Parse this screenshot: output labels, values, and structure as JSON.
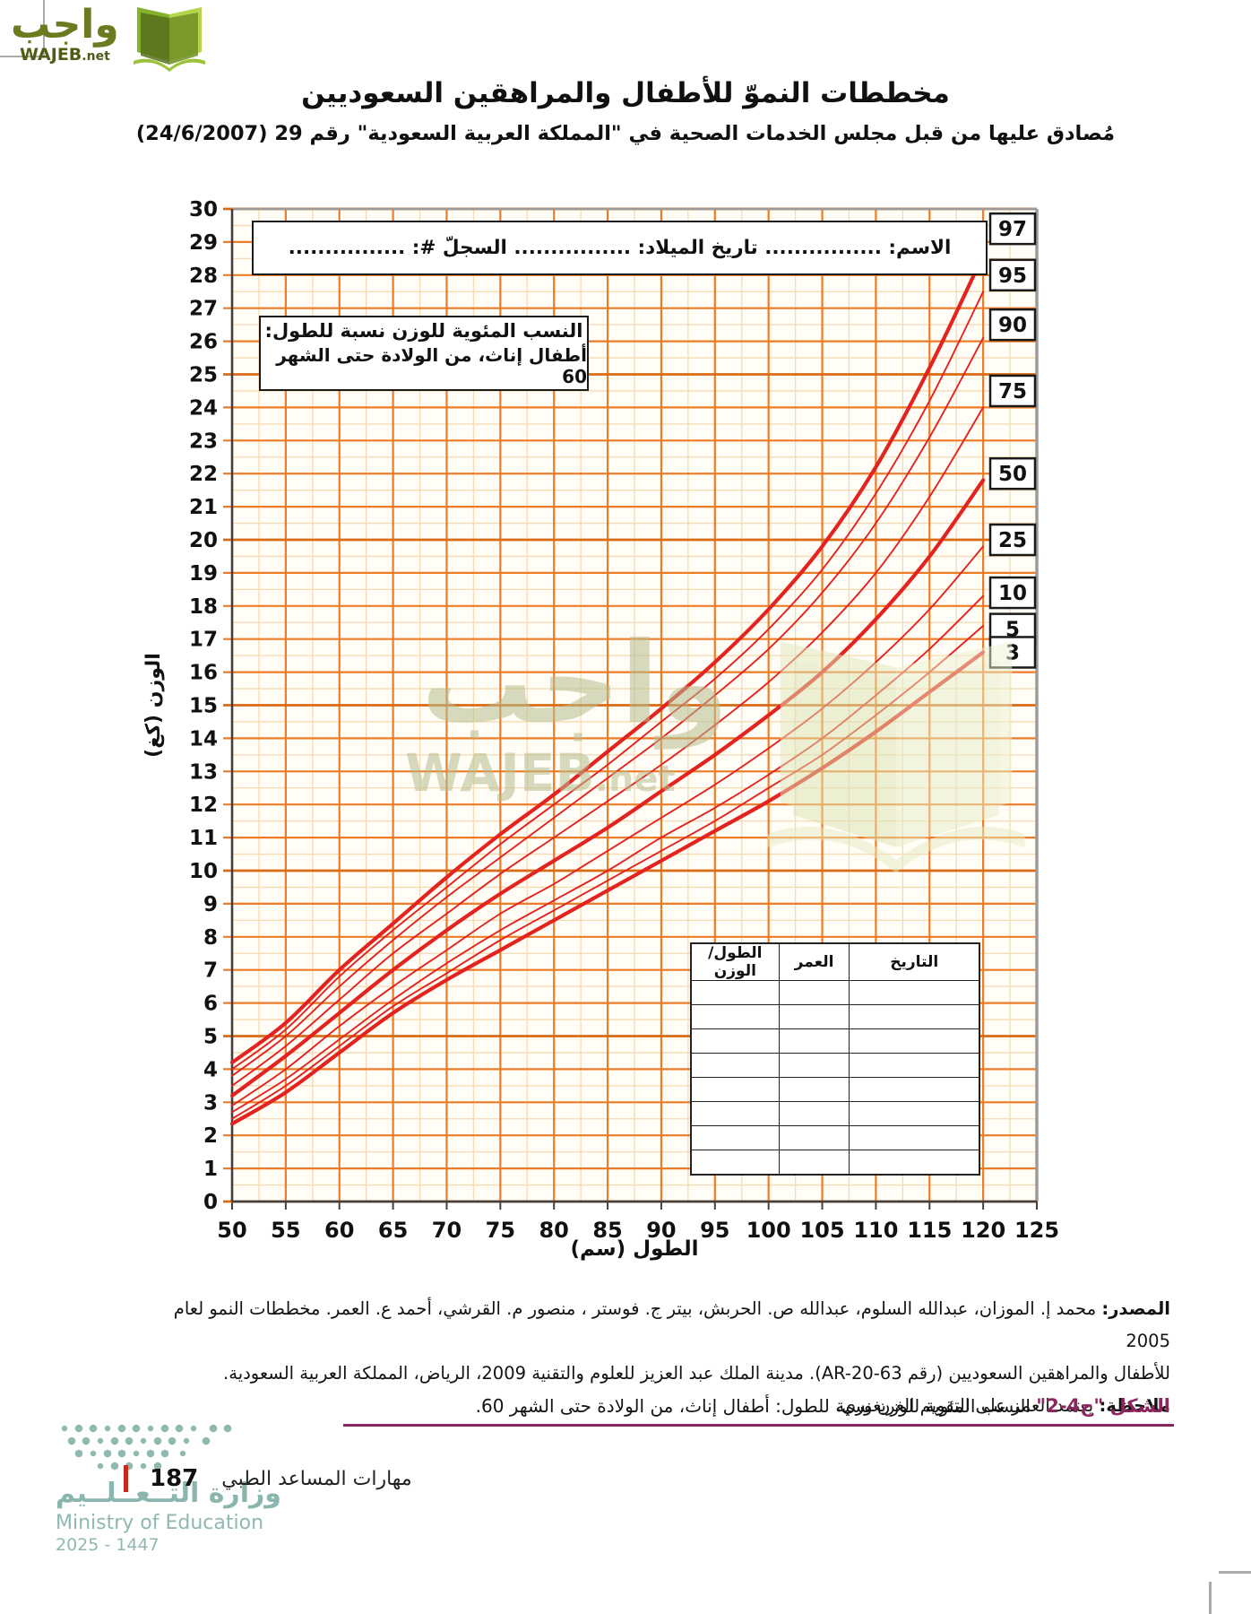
{
  "logo": {
    "arabic": "واجب",
    "latin": "WAJEB",
    "suffix": ".net",
    "colors": {
      "dark_green": "#55711b",
      "mid_green": "#86b12a",
      "light_green": "#b5d44d",
      "text": "#6d7b20"
    }
  },
  "header": {
    "title": "مخططات النموّ للأطفال والمراهقين السعوديين",
    "subtitle": "مُصادق عليها من قبل مجلس الخدمات الصحية في \"المملكة العربية السعودية\" رقم 29 (24/6/2007)"
  },
  "chart": {
    "name_box": "الاسم: ................ تاريخ الميلاد: ................ السجلّ #: ................",
    "note_box_line1": "النسب المئوية للوزن نسبة للطول:",
    "note_box_line2": "أطفال إناث، من الولادة حتى الشهر 60",
    "record_table": {
      "headers": [
        "التاريخ",
        "العمر",
        "الطول/الوزن"
      ],
      "empty_rows": 8
    }
  },
  "chart_data": {
    "type": "line",
    "title": "النسب المئوية للوزن نسبة للطول: أطفال إناث، من الولادة حتى الشهر 60",
    "xlabel": "الطول (سم)",
    "ylabel": "الوزن (كغ)",
    "xlim": [
      50,
      125
    ],
    "ylim": [
      0,
      30
    ],
    "x_major_step": 5,
    "x_minor_step": 2.5,
    "y_major_step": 1,
    "y_minor_step": 0.5,
    "x_ticks": [
      50,
      55,
      60,
      65,
      70,
      75,
      80,
      85,
      90,
      95,
      100,
      105,
      110,
      115,
      120,
      125
    ],
    "y_ticks": [
      0,
      1,
      2,
      3,
      4,
      5,
      6,
      7,
      8,
      9,
      10,
      11,
      12,
      13,
      14,
      15,
      16,
      17,
      18,
      19,
      20,
      21,
      22,
      23,
      24,
      25,
      26,
      27,
      28,
      29,
      30
    ],
    "x": [
      50,
      55,
      60,
      65,
      70,
      75,
      80,
      85,
      90,
      95,
      100,
      105,
      110,
      115,
      120
    ],
    "series": [
      {
        "name": "97",
        "thick": true,
        "label_at": 29.4,
        "values": [
          4.2,
          5.4,
          7.0,
          8.4,
          9.8,
          11.1,
          12.3,
          13.6,
          14.9,
          16.3,
          17.9,
          19.8,
          22.2,
          25.2,
          28.6
        ]
      },
      {
        "name": "95",
        "thick": false,
        "label_at": 28.0,
        "values": [
          4.0,
          5.2,
          6.8,
          8.2,
          9.5,
          10.8,
          12.0,
          13.2,
          14.5,
          15.8,
          17.3,
          19.1,
          21.4,
          24.2,
          27.5
        ]
      },
      {
        "name": "90",
        "thick": false,
        "label_at": 26.5,
        "values": [
          3.8,
          5.0,
          6.5,
          7.9,
          9.2,
          10.4,
          11.6,
          12.8,
          14.0,
          15.3,
          16.7,
          18.4,
          20.5,
          23.1,
          26.1
        ]
      },
      {
        "name": "75",
        "thick": false,
        "label_at": 24.5,
        "values": [
          3.5,
          4.7,
          6.1,
          7.5,
          8.7,
          9.9,
          11.0,
          12.1,
          13.2,
          14.4,
          15.7,
          17.2,
          19.0,
          21.3,
          24.0
        ]
      },
      {
        "name": "50",
        "thick": true,
        "label_at": 22.0,
        "values": [
          3.2,
          4.4,
          5.7,
          7.0,
          8.2,
          9.3,
          10.3,
          11.3,
          12.4,
          13.5,
          14.7,
          16.0,
          17.6,
          19.5,
          21.8
        ]
      },
      {
        "name": "25",
        "thick": false,
        "label_at": 20.0,
        "values": [
          2.9,
          4.0,
          5.3,
          6.5,
          7.6,
          8.7,
          9.6,
          10.6,
          11.6,
          12.6,
          13.7,
          14.9,
          16.3,
          17.9,
          19.8
        ]
      },
      {
        "name": "10",
        "thick": false,
        "label_at": 18.4,
        "values": [
          2.7,
          3.7,
          4.9,
          6.1,
          7.2,
          8.2,
          9.1,
          10.0,
          11.0,
          11.9,
          12.9,
          14.0,
          15.3,
          16.7,
          18.3
        ]
      },
      {
        "name": "5",
        "thick": false,
        "label_at": 17.3,
        "values": [
          2.5,
          3.5,
          4.7,
          5.9,
          6.9,
          7.9,
          8.8,
          9.7,
          10.6,
          11.5,
          12.5,
          13.5,
          14.7,
          16.0,
          17.4
        ]
      },
      {
        "name": "3",
        "thick": true,
        "label_at": 16.6,
        "values": [
          2.35,
          3.3,
          4.5,
          5.7,
          6.7,
          7.6,
          8.5,
          9.4,
          10.3,
          11.2,
          12.1,
          13.1,
          14.2,
          15.4,
          16.6
        ]
      }
    ],
    "colors": {
      "curve": "#e2231f",
      "grid_major": "#ee7b25",
      "grid_major_dark": "#d96b15",
      "grid_minor": "#f5dab4",
      "plot_bg": "#fffdf5",
      "axis_dark": "#3f3f3f",
      "border_gray": "#9b9b9b"
    },
    "legend_position": "right"
  },
  "watermark": {
    "arabic": "واجب",
    "latin": "WAJEB",
    "suffix": ".net"
  },
  "footer": {
    "source_prefix": "المصدر:",
    "source_line1": "محمد إ. الموزان، عبدالله السلوم، عبدالله ص. الحربش، بيتر ج. فوستر ، منصور م. القرشي، أحمد ع. العمر. مخططات النمو لعام 2005",
    "source_line2": "للأطفال والمراهقين السعوديين (رقم AR-20-63). مدينة الملك عبد العزيز للعلوم والتقنية 2009، الرياض، المملكة العربية السعودية.",
    "note_prefix": "ملاحظة:",
    "note_text": "يعتمد العمر على التقويم الغريغوري.",
    "caption_label": "الشكل \"ح4-2\"",
    "caption_text": "النسب المئوية للوزن نسبة للطول: أطفال إناث، من الولادة حتى الشهر 60."
  },
  "page_footer": {
    "ministry_ar": "وزارة التــعــلــيم",
    "ministry_en": "Ministry of Education",
    "years": "2025 - 1447",
    "book_label": "مهارات المساعد الطبي",
    "page_number": "187",
    "teal": "#8fb8b1",
    "red_bar": "#c5281c"
  }
}
